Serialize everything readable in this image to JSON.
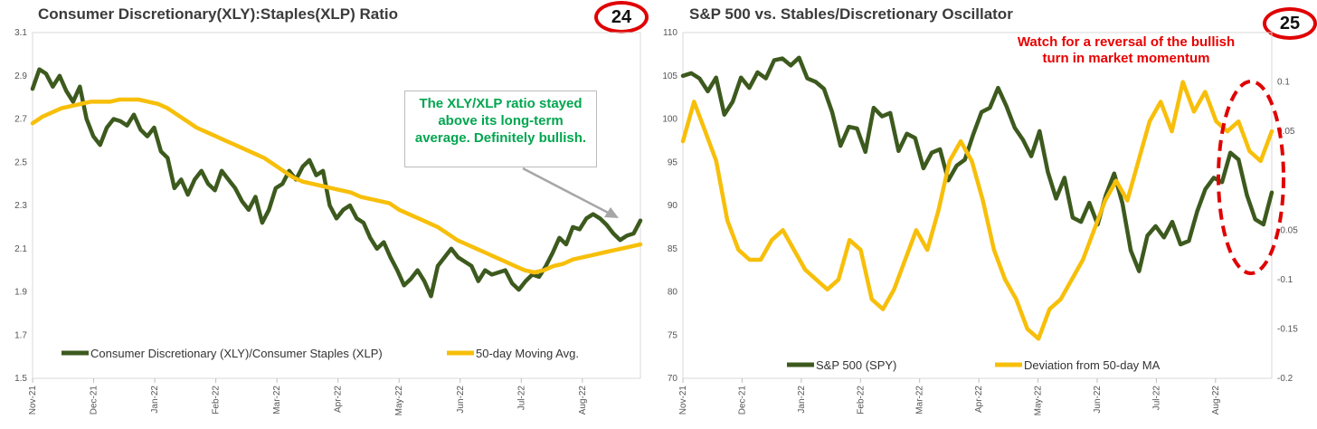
{
  "chart_data": [
    {
      "type": "line",
      "title": "Consumer Discretionary(XLY):Staples(XLP) Ratio",
      "badge": "24",
      "y_ticks": [
        "3.1",
        "2.9",
        "2.7",
        "2.5",
        "2.3",
        "2.1",
        "1.9",
        "1.7",
        "1.5"
      ],
      "ylim": [
        1.5,
        3.1
      ],
      "x_ticks": [
        "Nov-21",
        "Dec-21",
        "Jan-22",
        "Feb-22",
        "Mar-22",
        "Apr-22",
        "May-22",
        "Jun-22",
        "Jul-22",
        "Aug-22"
      ],
      "annotation": "The XLY/XLP ratio stayed above its long-term average.  Definitely bullish.",
      "series": [
        {
          "name": "Consumer Discretionary (XLY)/Consumer Staples (XLP)",
          "color": "#3d5a1e",
          "values": [
            2.84,
            2.93,
            2.91,
            2.85,
            2.9,
            2.83,
            2.78,
            2.85,
            2.7,
            2.62,
            2.58,
            2.66,
            2.7,
            2.69,
            2.67,
            2.72,
            2.65,
            2.62,
            2.66,
            2.55,
            2.52,
            2.38,
            2.42,
            2.35,
            2.42,
            2.46,
            2.4,
            2.37,
            2.46,
            2.42,
            2.38,
            2.32,
            2.28,
            2.34,
            2.22,
            2.28,
            2.38,
            2.4,
            2.46,
            2.42,
            2.48,
            2.51,
            2.44,
            2.46,
            2.3,
            2.24,
            2.28,
            2.3,
            2.24,
            2.22,
            2.15,
            2.1,
            2.13,
            2.06,
            2.0,
            1.93,
            1.96,
            2.0,
            1.95,
            1.88,
            2.02,
            2.06,
            2.1,
            2.06,
            2.04,
            2.02,
            1.95,
            2.0,
            1.98,
            1.99,
            2.0,
            1.94,
            1.91,
            1.95,
            1.98,
            1.97,
            2.02,
            2.08,
            2.15,
            2.12,
            2.2,
            2.19,
            2.24,
            2.26,
            2.24,
            2.21,
            2.17,
            2.14,
            2.16,
            2.17,
            2.23
          ]
        },
        {
          "name": "50-day Moving Avg.",
          "color": "#f7bf0a",
          "values": [
            2.68,
            2.71,
            2.73,
            2.75,
            2.76,
            2.77,
            2.78,
            2.78,
            2.78,
            2.79,
            2.79,
            2.79,
            2.78,
            2.77,
            2.75,
            2.72,
            2.69,
            2.66,
            2.64,
            2.62,
            2.6,
            2.58,
            2.56,
            2.54,
            2.52,
            2.49,
            2.46,
            2.43,
            2.41,
            2.4,
            2.39,
            2.38,
            2.37,
            2.36,
            2.34,
            2.33,
            2.32,
            2.31,
            2.28,
            2.26,
            2.24,
            2.22,
            2.2,
            2.17,
            2.14,
            2.12,
            2.1,
            2.08,
            2.06,
            2.04,
            2.02,
            2.0,
            1.99,
            2.0,
            2.02,
            2.03,
            2.05,
            2.06,
            2.07,
            2.08,
            2.09,
            2.1,
            2.11,
            2.12
          ]
        }
      ]
    },
    {
      "type": "line",
      "title": "S&P 500 vs. Stables/Discretionary Oscillator",
      "badge": "25",
      "y_ticks": [
        "110",
        "105",
        "100",
        "95",
        "90",
        "85",
        "80",
        "75",
        "70"
      ],
      "ylim": [
        70,
        110
      ],
      "y2_ticks": [
        "0.1",
        "0.05",
        "-0.05",
        "-0.1",
        "-0.15",
        "-0.2"
      ],
      "y2_vals": [
        0.1,
        0.05,
        -0.05,
        -0.1,
        -0.15,
        -0.2
      ],
      "y2lim": [
        -0.2,
        0.15
      ],
      "x_ticks": [
        "Nov-21",
        "Dec-21",
        "Jan-22",
        "Feb-22",
        "Mar-22",
        "Apr-22",
        "May-22",
        "Jun-22",
        "Jul-22",
        "Aug-22"
      ],
      "annotation": "Watch for a reversal of the bullish turn in market momentum",
      "series": [
        {
          "name": "S&P 500 (SPY)",
          "color": "#3d5a1e",
          "axis": "left",
          "values": [
            105,
            105.3,
            104.7,
            103.2,
            104.8,
            100.5,
            102,
            104.8,
            103.6,
            105.4,
            104.7,
            106.8,
            107,
            106.2,
            107.1,
            104.7,
            104.3,
            103.5,
            100.8,
            96.9,
            99.1,
            98.9,
            96.2,
            101.3,
            100.3,
            100.7,
            96.3,
            98.3,
            97.8,
            94.3,
            96.1,
            96.5,
            92.9,
            94.6,
            95.3,
            98.2,
            100.8,
            101.3,
            103.6,
            101.5,
            99,
            97.6,
            95.7,
            98.6,
            93.9,
            90.8,
            93.2,
            88.6,
            88.1,
            90.3,
            87.8,
            91.2,
            93.7,
            90.2,
            84.8,
            82.4,
            86.5,
            87.6,
            86.3,
            88.1,
            85.5,
            85.9,
            89.3,
            91.9,
            93.2,
            92.7,
            96.1,
            95.3,
            91.2,
            88.4,
            87.8,
            91.5
          ]
        },
        {
          "name": "Deviation from 50-day MA",
          "color": "#f7bf0a",
          "axis": "right",
          "values": [
            0.04,
            0.08,
            0.05,
            0.02,
            -0.04,
            -0.07,
            -0.08,
            -0.08,
            -0.06,
            -0.05,
            -0.07,
            -0.09,
            -0.1,
            -0.11,
            -0.1,
            -0.06,
            -0.07,
            -0.12,
            -0.13,
            -0.11,
            -0.08,
            -0.05,
            -0.07,
            -0.03,
            0.02,
            0.04,
            0.02,
            -0.02,
            -0.07,
            -0.1,
            -0.12,
            -0.15,
            -0.16,
            -0.13,
            -0.12,
            -0.1,
            -0.08,
            -0.05,
            -0.02,
            0.0,
            -0.02,
            0.02,
            0.06,
            0.08,
            0.05,
            0.1,
            0.07,
            0.09,
            0.06,
            0.05,
            0.06,
            0.03,
            0.02,
            0.05
          ]
        }
      ]
    }
  ]
}
